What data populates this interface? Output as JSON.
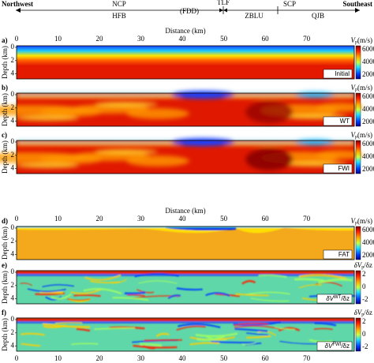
{
  "header": {
    "left": "Northwest",
    "right": "Southeast",
    "labels": [
      "NCP",
      "HFB",
      "(FDD)",
      "TLF",
      "ZBLU",
      "SCP",
      "QJB"
    ]
  },
  "axis": {
    "title": "Distance (km)",
    "ticks": [
      0,
      10,
      20,
      30,
      40,
      50,
      60,
      70
    ],
    "depth_label": "Depth (km)",
    "depth_ticks": [
      0,
      2,
      4
    ]
  },
  "colorbars": {
    "velocity": {
      "symbol": "V",
      "sub": "p",
      "unit": "(m/s)",
      "ticks": [
        6000,
        4000,
        2000
      ]
    },
    "gradient": {
      "symbol": "δV",
      "sub": "p",
      "unit": "/δz",
      "ticks": [
        2,
        0,
        -2
      ]
    }
  },
  "panels": [
    {
      "letter": "a)",
      "tag": "Initial",
      "colorbar": "velocity"
    },
    {
      "letter": "b)",
      "tag": "WT",
      "colorbar": "velocity"
    },
    {
      "letter": "c)",
      "tag": "FWI",
      "colorbar": "velocity"
    },
    {
      "letter": "d)",
      "tag": "FAT",
      "colorbar": "velocity"
    },
    {
      "letter": "e)",
      "tag": {
        "pre": "δV",
        "sup": "WT",
        "post": "/δz"
      },
      "colorbar": "gradient"
    },
    {
      "letter": "f)",
      "tag": {
        "pre": "δV",
        "sup": "FWI",
        "post": "/δz"
      },
      "colorbar": "gradient"
    }
  ]
}
